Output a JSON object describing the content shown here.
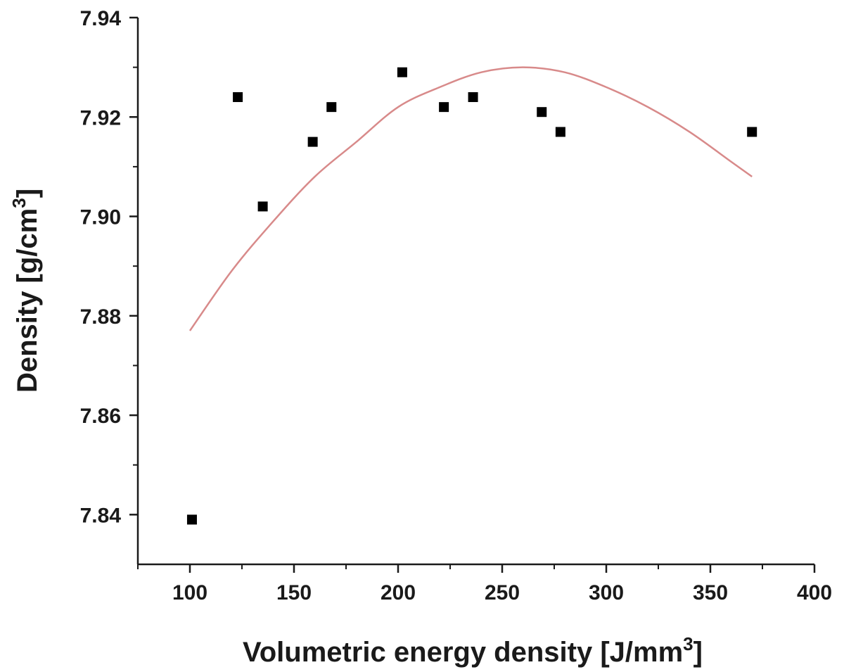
{
  "chart_data": {
    "type": "scatter",
    "title": "",
    "xlabel": "Volumetric energy density [J/mm",
    "xlabel_sup": "3",
    "xlabel_end": "]",
    "ylabel": "Density [g/cm",
    "ylabel_sup": "3",
    "ylabel_end": "]",
    "xlim": [
      75,
      400
    ],
    "ylim": [
      7.83,
      7.94
    ],
    "x_ticks": [
      100,
      150,
      200,
      250,
      300,
      350,
      400
    ],
    "x_tick_labels": [
      "100",
      "150",
      "200",
      "250",
      "300",
      "350",
      "400"
    ],
    "y_ticks": [
      7.84,
      7.86,
      7.88,
      7.9,
      7.92,
      7.94
    ],
    "y_tick_labels": [
      "7.84",
      "7.86",
      "7.88",
      "7.90",
      "7.92",
      "7.94"
    ],
    "grid": false,
    "series": [
      {
        "type": "scatter",
        "marker": "square",
        "color": "#000000",
        "x": [
          101,
          123,
          135,
          159,
          168,
          202,
          222,
          236,
          269,
          278,
          370
        ],
        "y": [
          7.839,
          7.924,
          7.902,
          7.915,
          7.922,
          7.929,
          7.922,
          7.924,
          7.921,
          7.917,
          7.917
        ]
      },
      {
        "type": "line",
        "color": "#d88a8a",
        "x": [
          100,
          120,
          140,
          160,
          180,
          200,
          220,
          240,
          260,
          280,
          300,
          320,
          340,
          360,
          370
        ],
        "y": [
          7.877,
          7.889,
          7.899,
          7.908,
          7.915,
          7.922,
          7.926,
          7.929,
          7.93,
          7.929,
          7.926,
          7.922,
          7.917,
          7.911,
          7.908
        ]
      }
    ]
  }
}
